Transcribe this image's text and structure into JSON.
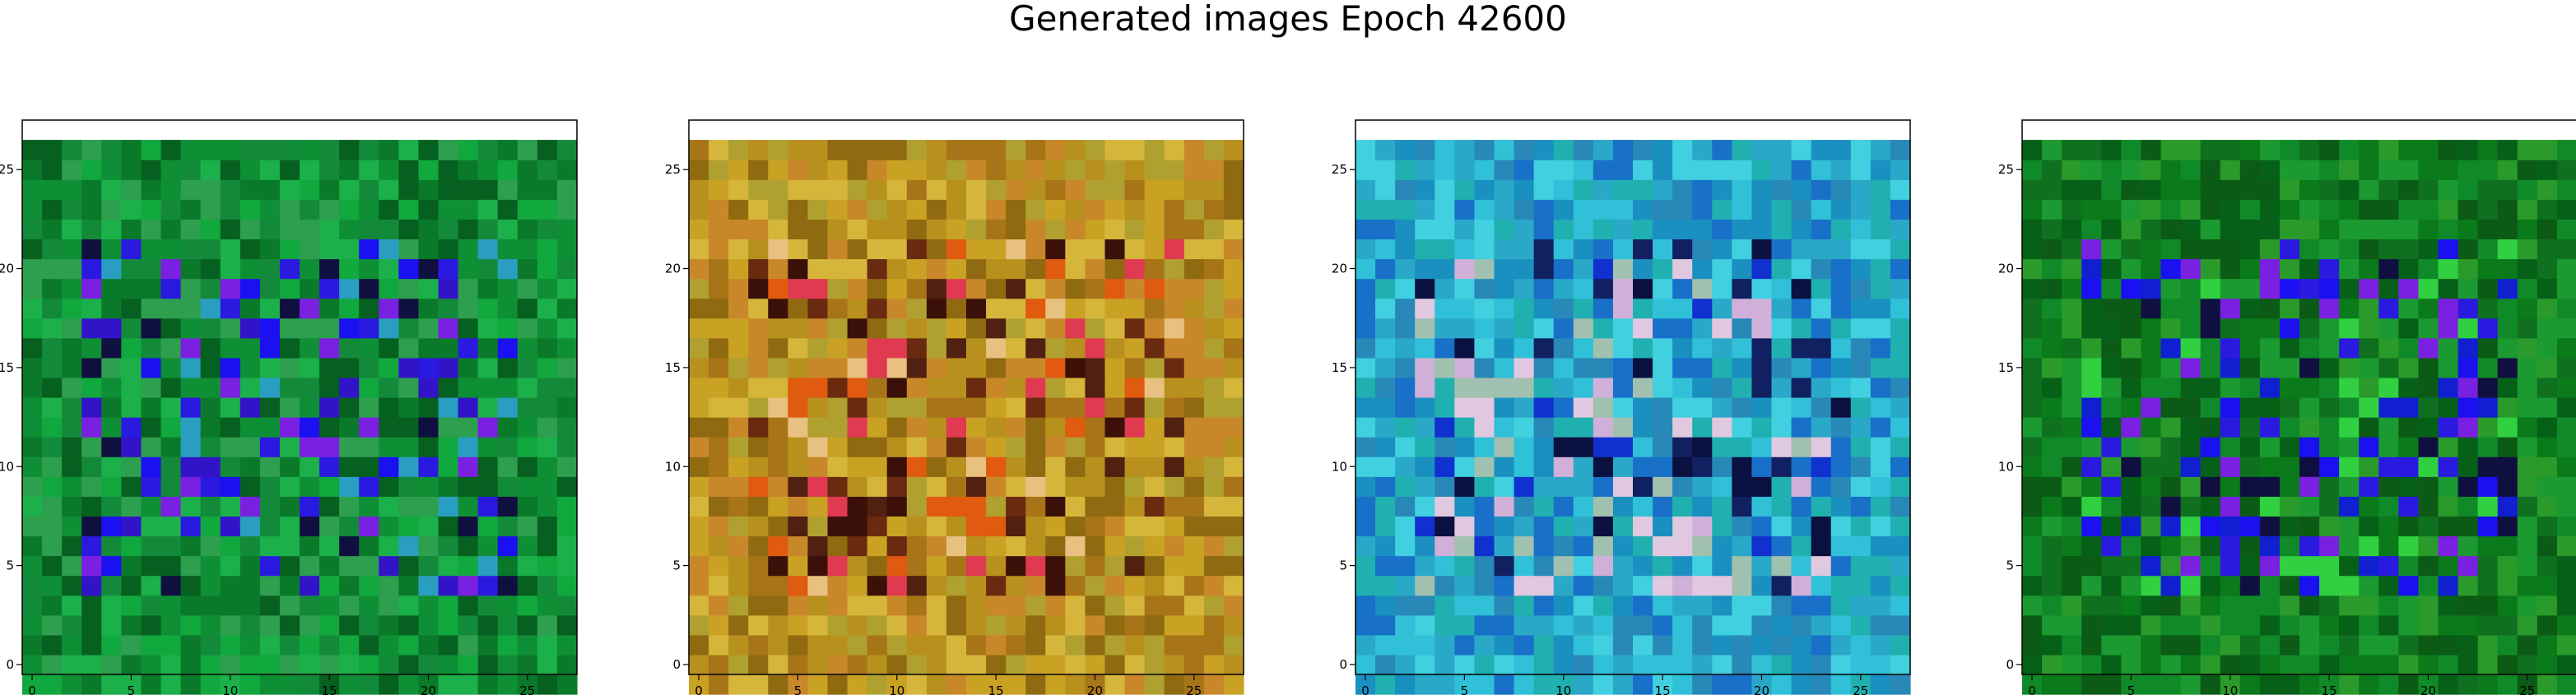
{
  "title": "Generated images Epoch 42600",
  "chart_data": [
    {
      "type": "heatmap",
      "title": "",
      "xlabel": "",
      "ylabel": "",
      "grid": false,
      "xlim": [
        -0.5,
        27.5
      ],
      "ylim": [
        27.5,
        -0.5
      ],
      "xticks": [
        "0",
        "5",
        "10",
        "15",
        "20",
        "25"
      ],
      "yticks": [
        "0",
        "5",
        "10",
        "15",
        "20",
        "25"
      ],
      "palette": [
        "#0a7a2a",
        "#11a83e",
        "#0f8f35",
        "#138a3a",
        "#06601f",
        "#1bb04a",
        "#2e9e4f"
      ],
      "motif_colors": [
        "#1a10f0",
        "#2a1ae0",
        "#3214c8",
        "#7a20e0",
        "#101040",
        "#2a9ec0"
      ],
      "seed": 11
    },
    {
      "type": "heatmap",
      "title": "",
      "xlabel": "",
      "ylabel": "",
      "grid": false,
      "xlim": [
        -0.5,
        27.5
      ],
      "ylim": [
        27.5,
        -0.5
      ],
      "xticks": [
        "0",
        "5",
        "10",
        "15",
        "20",
        "25"
      ],
      "yticks": [
        "0",
        "5",
        "10",
        "15",
        "20",
        "25"
      ],
      "palette": [
        "#b8901e",
        "#c9a224",
        "#a87418",
        "#d6b63a",
        "#8f6a10",
        "#c8882a",
        "#b0a030"
      ],
      "motif_colors": [
        "#3a1008",
        "#6a2a10",
        "#e03a50",
        "#e05a10",
        "#e8c080",
        "#502010"
      ],
      "seed": 23
    },
    {
      "type": "heatmap",
      "title": "",
      "xlabel": "",
      "ylabel": "",
      "grid": false,
      "xlim": [
        -0.5,
        27.5
      ],
      "ylim": [
        27.5,
        -0.5
      ],
      "xticks": [
        "0",
        "5",
        "10",
        "15",
        "20",
        "25"
      ],
      "yticks": [
        "0",
        "5",
        "10",
        "15",
        "20",
        "25"
      ],
      "palette": [
        "#2aa8c8",
        "#1a90c0",
        "#30c0d8",
        "#1870c8",
        "#20b0b0",
        "#40d0e0",
        "#2888b8"
      ],
      "motif_colors": [
        "#0a1040",
        "#102060",
        "#d0b0d8",
        "#a0c0b0",
        "#1030d0",
        "#e0c8e0"
      ],
      "seed": 37
    },
    {
      "type": "heatmap",
      "title": "",
      "xlabel": "",
      "ylabel": "",
      "grid": false,
      "xlim": [
        -0.5,
        27.5
      ],
      "ylim": [
        27.5,
        -0.5
      ],
      "xticks": [
        "0",
        "5",
        "10",
        "15",
        "20",
        "25"
      ],
      "yticks": [
        "0",
        "5",
        "10",
        "15",
        "20",
        "25"
      ],
      "palette": [
        "#0a7a1a",
        "#108a28",
        "#066018",
        "#1a9a30",
        "#0b5a16",
        "#2a9a2a",
        "#0f7020"
      ],
      "motif_colors": [
        "#1a10f0",
        "#2a1ae0",
        "#7a20e0",
        "#101040",
        "#30d040",
        "#1020d0"
      ],
      "seed": 53
    }
  ]
}
